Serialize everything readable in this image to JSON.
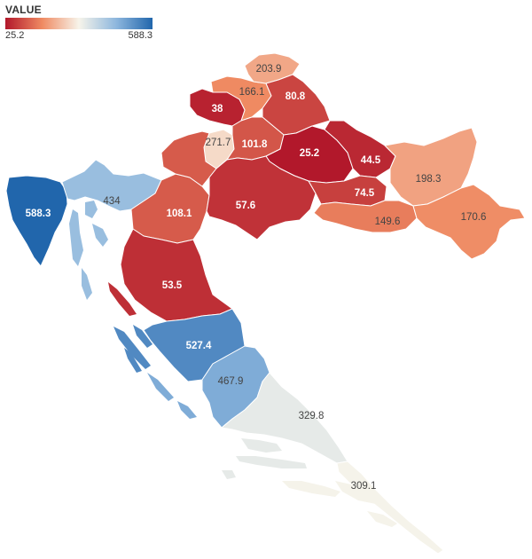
{
  "legend": {
    "title": "VALUE",
    "min_label": "25.2",
    "max_label": "588.3",
    "min": 25.2,
    "max": 588.3,
    "colors": [
      "#b2182b",
      "#ef8a62",
      "#f7f4ea",
      "#8fb8de",
      "#2166ac"
    ]
  },
  "regions": [
    {
      "id": "r-203-9",
      "label": "203.9",
      "value": 203.9
    },
    {
      "id": "r-166-1",
      "label": "166.1",
      "value": 166.1
    },
    {
      "id": "r-80-8",
      "label": "80.8",
      "value": 80.8
    },
    {
      "id": "r-38",
      "label": "38",
      "value": 38
    },
    {
      "id": "r-271-7",
      "label": "271.7",
      "value": 271.7
    },
    {
      "id": "r-101-8",
      "label": "101.8",
      "value": 101.8
    },
    {
      "id": "r-25-2",
      "label": "25.2",
      "value": 25.2
    },
    {
      "id": "r-44-5",
      "label": "44.5",
      "value": 44.5
    },
    {
      "id": "r-198-3",
      "label": "198.3",
      "value": 198.3
    },
    {
      "id": "r-434",
      "label": "434",
      "value": 434
    },
    {
      "id": "r-588-3",
      "label": "588.3",
      "value": 588.3
    },
    {
      "id": "r-108-1",
      "label": "108.1",
      "value": 108.1
    },
    {
      "id": "r-57-6",
      "label": "57.6",
      "value": 57.6
    },
    {
      "id": "r-74-5",
      "label": "74.5",
      "value": 74.5
    },
    {
      "id": "r-149-6",
      "label": "149.6",
      "value": 149.6
    },
    {
      "id": "r-170-6",
      "label": "170.6",
      "value": 170.6
    },
    {
      "id": "r-53-5",
      "label": "53.5",
      "value": 53.5
    },
    {
      "id": "r-527-4",
      "label": "527.4",
      "value": 527.4
    },
    {
      "id": "r-467-9",
      "label": "467.9",
      "value": 467.9
    },
    {
      "id": "r-329-8",
      "label": "329.8",
      "value": 329.8
    },
    {
      "id": "r-309-1",
      "label": "309.1",
      "value": 309.1
    }
  ]
}
